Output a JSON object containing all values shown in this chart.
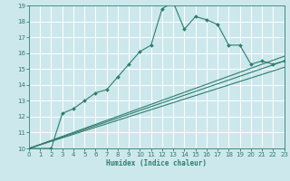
{
  "xlabel": "Humidex (Indice chaleur)",
  "xlim": [
    0,
    23
  ],
  "ylim": [
    10,
    19
  ],
  "xticks": [
    0,
    1,
    2,
    3,
    4,
    5,
    6,
    7,
    8,
    9,
    10,
    11,
    12,
    13,
    14,
    15,
    16,
    17,
    18,
    19,
    20,
    21,
    22,
    23
  ],
  "yticks": [
    10,
    11,
    12,
    13,
    14,
    15,
    16,
    17,
    18,
    19
  ],
  "bg_color": "#cce8ec",
  "grid_color": "#ffffff",
  "line_color": "#2e7d6e",
  "line1_x": [
    0,
    2,
    3,
    4,
    5,
    6,
    7,
    8,
    9,
    10,
    11,
    12,
    13,
    14,
    15,
    16,
    17,
    18,
    19,
    20,
    21,
    22,
    23
  ],
  "line1_y": [
    10,
    10,
    12.2,
    12.5,
    13,
    13.5,
    13.7,
    14.5,
    15.3,
    16.1,
    16.5,
    18.8,
    19.2,
    17.5,
    18.3,
    18.1,
    17.8,
    16.5,
    16.5,
    15.3,
    15.5,
    15.3,
    15.5
  ],
  "line2_x": [
    0,
    23
  ],
  "line2_y": [
    10,
    15.5
  ],
  "line3_x": [
    0,
    23
  ],
  "line3_y": [
    10,
    15.1
  ],
  "line4_x": [
    0,
    23
  ],
  "line4_y": [
    10,
    15.8
  ]
}
